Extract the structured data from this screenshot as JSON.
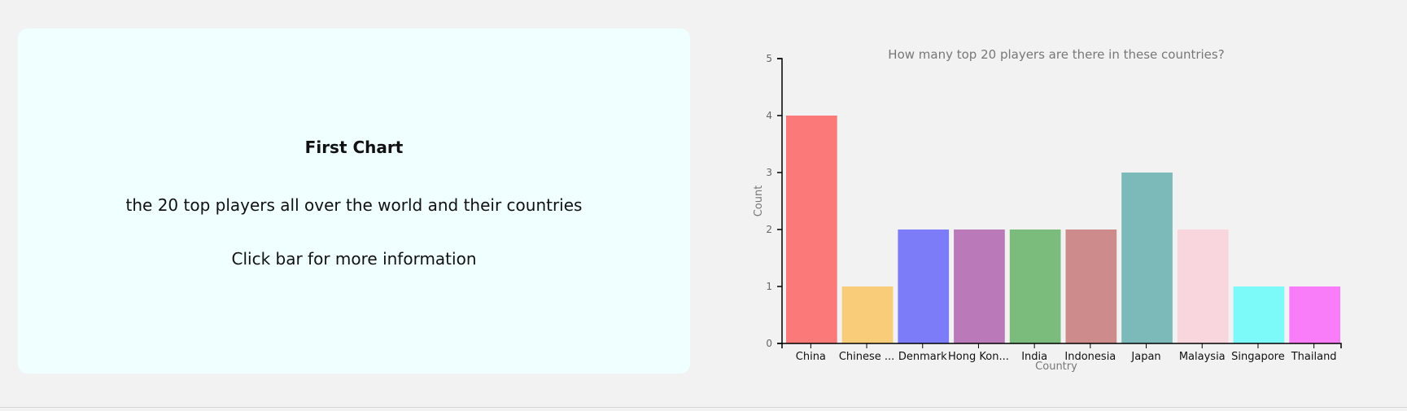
{
  "info": {
    "title": "First Chart",
    "subtitle": "the 20 top players all over the world and their countries",
    "hint": "Click bar for more information"
  },
  "chart_data": {
    "type": "bar",
    "title": "How many top 20 players are there in these countries?",
    "xlabel": "Country",
    "ylabel": "Count",
    "ylim": [
      0,
      5
    ],
    "yticks": [
      0,
      1,
      2,
      3,
      4,
      5
    ],
    "categories": [
      "China",
      "Chinese ...",
      "Denmark",
      "Hong Kon...",
      "India",
      "Indonesia",
      "Japan",
      "Malaysia",
      "Singapore",
      "Thailand"
    ],
    "values": [
      4,
      1,
      2,
      2,
      2,
      2,
      3,
      2,
      1,
      1
    ],
    "colors": [
      "#fb7a79",
      "#f9cc7a",
      "#7c7bf8",
      "#ba7aba",
      "#7bbb7b",
      "#cd8b8b",
      "#7cbab9",
      "#f9d6dd",
      "#7cfafa",
      "#f97df8"
    ],
    "grid": false,
    "legend": "none"
  }
}
